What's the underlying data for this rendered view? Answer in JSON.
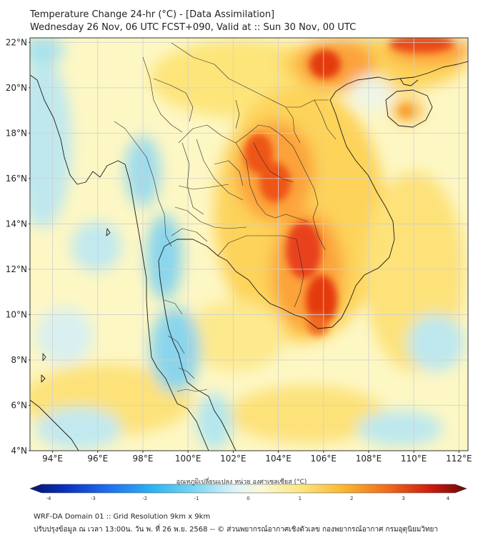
{
  "header": {
    "title": "Temperature Change 24-hr (°C) - [Data Assimilation]",
    "subtitle": "Wednesday 26 Nov, 06 UTC FCST+090, Valid at :: Sun 30 Nov, 00 UTC"
  },
  "map": {
    "lat_labels": [
      "22°N",
      "20°N",
      "18°N",
      "16°N",
      "14°N",
      "12°N",
      "10°N",
      "8°N",
      "6°N",
      "4°N"
    ],
    "lon_labels": [
      "94°E",
      "96°E",
      "98°E",
      "100°E",
      "102°E",
      "104°E",
      "106°E",
      "108°E",
      "110°E",
      "112°E"
    ],
    "lat_range": [
      4,
      22.2
    ],
    "lon_range": [
      93,
      112.4
    ],
    "colors": {
      "background": "#fdfbd0",
      "warm_center": "#e43a10",
      "cool": "#7fd6ee",
      "border_line": "#1a1a1a",
      "grid": "#cfcfcf"
    }
  },
  "colorbar": {
    "title": "อุณหภูมิเปลี่ยนแปลง หน่วย องศาเซลเซียส (°C)",
    "ticks": [
      "-4",
      "-3",
      "-2",
      "-1",
      "0",
      "1",
      "2",
      "3",
      "4"
    ],
    "min": -4,
    "max": 4
  },
  "footer": {
    "line1": "WRF-DA Domain 01 :: Grid Resolution 9km x 9km",
    "line2": "ปรับปรุงข้อมูล ณ เวลา 13:00น. วัน พ. ที่ 26 พ.ย. 2568 -- © ส่วนพยากรณ์อากาศเชิงตัวเลข กองพยากรณ์อากาศ กรมอุตุนิยมวิทยา"
  }
}
